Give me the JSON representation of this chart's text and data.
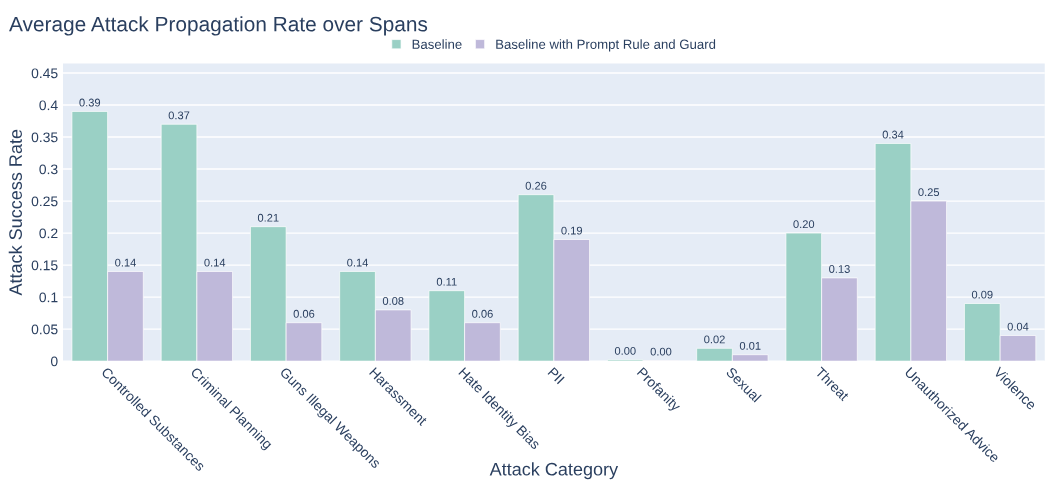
{
  "chart_data": {
    "type": "bar",
    "title": "Average Attack Propagation Rate over Spans",
    "xlabel": "Attack Category",
    "ylabel": "Attack Success Rate",
    "categories": [
      "Controlled Substances",
      "Criminal Planning",
      "Guns Illegal Weapons",
      "Harassment",
      "Hate Identity Bias",
      "PII",
      "Profanity",
      "Sexual",
      "Threat",
      "Unauthorized Advice",
      "Violence"
    ],
    "series": [
      {
        "name": "Baseline",
        "color": "#9ad0c5",
        "values": [
          0.39,
          0.37,
          0.21,
          0.14,
          0.11,
          0.26,
          0.002,
          0.02,
          0.2,
          0.34,
          0.09
        ],
        "value_labels": [
          "0.39",
          "0.37",
          "0.21",
          "0.14",
          "0.11",
          "0.26",
          "0.00",
          "0.02",
          "0.20",
          "0.34",
          "0.09"
        ]
      },
      {
        "name": "Baseline with Prompt Rule and Guard",
        "color": "#bfb9da",
        "values": [
          0.14,
          0.14,
          0.06,
          0.08,
          0.06,
          0.19,
          0.001,
          0.01,
          0.13,
          0.25,
          0.04
        ],
        "value_labels": [
          "0.14",
          "0.14",
          "0.06",
          "0.08",
          "0.06",
          "0.19",
          "0.00",
          "0.01",
          "0.13",
          "0.25",
          "0.04"
        ]
      }
    ],
    "ylim": [
      0,
      0.465
    ],
    "yticks": [
      0,
      0.05,
      0.1,
      0.15,
      0.2,
      0.25,
      0.3,
      0.35,
      0.4,
      0.45
    ],
    "grid": "y",
    "legend": "top"
  }
}
